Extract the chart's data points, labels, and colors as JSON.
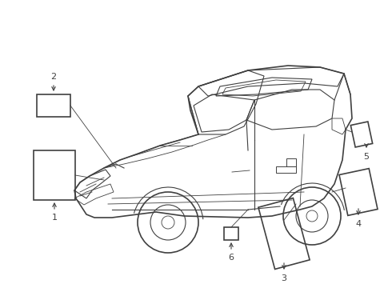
{
  "background_color": "#ffffff",
  "figsize": [
    4.9,
    3.6
  ],
  "dpi": 100,
  "line_color": "#404040",
  "line_color_light": "#888888",
  "label_fontsize": 8
}
